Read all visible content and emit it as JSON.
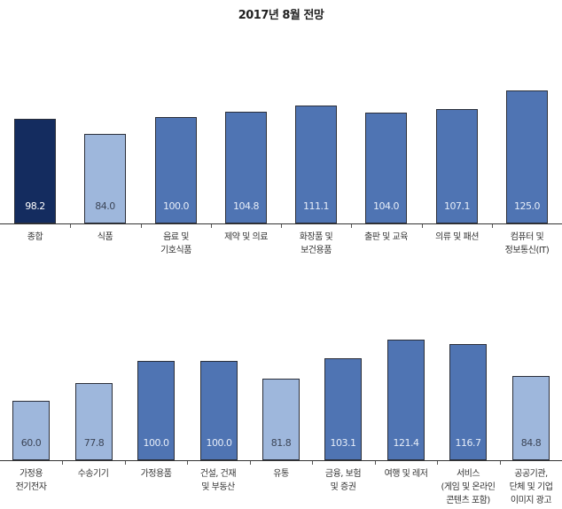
{
  "chart_data": [
    {
      "type": "bar",
      "title": "2017년 8월 전망",
      "xlabel": "",
      "ylabel": "",
      "grid": false,
      "legend": null,
      "categories": [
        "종합",
        "식품",
        "음료 및\n기호식품",
        "제약 및 의료",
        "화장품 및\n보건용품",
        "출판 및 교육",
        "의류 및 패션",
        "컴퓨터 및\n정보통신(IT)"
      ],
      "values": [
        98.2,
        84.0,
        100.0,
        104.8,
        111.1,
        104.0,
        107.1,
        125.0
      ],
      "labels": [
        "98.2",
        "84.0",
        "100.0",
        "104.8",
        "111.1",
        "104.0",
        "107.1",
        "125.0"
      ],
      "colors": [
        "#142c5f",
        "#9eb7dc",
        "#4f74b3",
        "#4f74b3",
        "#4f74b3",
        "#4f74b3",
        "#4f74b3",
        "#4f74b3"
      ]
    },
    {
      "type": "bar",
      "title": "",
      "xlabel": "",
      "ylabel": "",
      "grid": false,
      "legend": null,
      "categories": [
        "가정용\n전기전자",
        "수송기기",
        "가정용품",
        "건설, 건재\n및 부동산",
        "유통",
        "금융, 보험\n및 증권",
        "여행 및 레저",
        "서비스\n(게임 및 온라인\n콘텐츠 포함)",
        "공공기관,\n단체 및 기업\n이미지 광고"
      ],
      "values": [
        60.0,
        77.8,
        100.0,
        100.0,
        81.8,
        103.1,
        121.4,
        116.7,
        84.8
      ],
      "labels": [
        "60.0",
        "77.8",
        "100.0",
        "100.0",
        "81.8",
        "103.1",
        "121.4",
        "116.7",
        "84.8"
      ],
      "colors": [
        "#9eb7dc",
        "#9eb7dc",
        "#4f74b3",
        "#4f74b3",
        "#9eb7dc",
        "#4f74b3",
        "#4f74b3",
        "#4f74b3",
        "#9eb7dc"
      ]
    }
  ],
  "colors": {
    "overall": "#142c5f",
    "above_or_equal_100": "#4f74b3",
    "below_100": "#9eb7dc"
  }
}
